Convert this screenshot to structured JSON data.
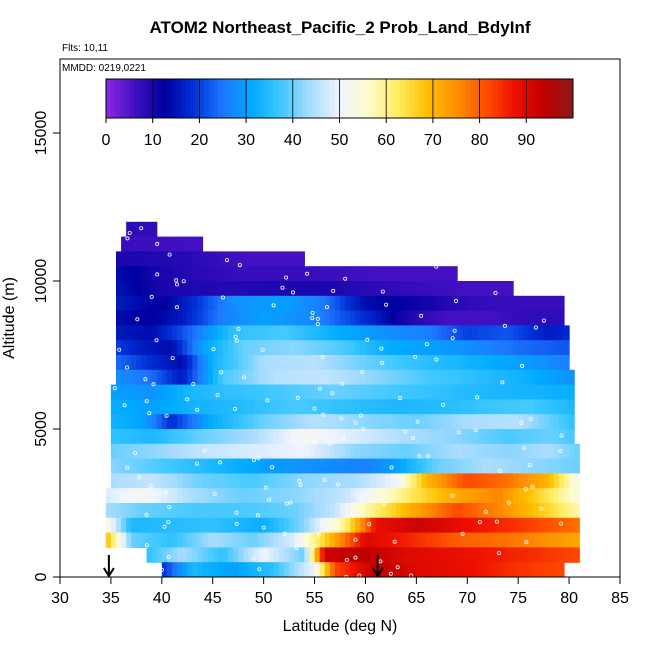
{
  "chart_data": {
    "type": "heatmap",
    "title": "ATOM2 Northeast_Pacific_2 Prob_Land_BdyInf",
    "annotations": {
      "flights": "Flts: 10,11",
      "dates": "MMDD: 0219,0221"
    },
    "xlabel": "Latitude (deg N)",
    "ylabel": "Altitude (m)",
    "xlim": [
      30,
      85
    ],
    "ylim": [
      0,
      17500
    ],
    "x_ticks": [
      "30",
      "35",
      "40",
      "45",
      "50",
      "55",
      "60",
      "65",
      "70",
      "75",
      "80",
      "85"
    ],
    "y_ticks": [
      "0",
      "5000",
      "10000",
      "15000"
    ],
    "colorbar": {
      "range": [
        0,
        100
      ],
      "tick_labels": [
        "0",
        "10",
        "20",
        "30",
        "40",
        "50",
        "60",
        "70",
        "80",
        "90"
      ],
      "colors": [
        "#8a2be2",
        "#4010c0",
        "#0000a0",
        "#0030d8",
        "#1e78ff",
        "#00aaff",
        "#40c8ff",
        "#a8dcff",
        "#f0f4ff",
        "#fffccc",
        "#ffec60",
        "#ffc000",
        "#ff9000",
        "#ff5000",
        "#ee1000",
        "#c00000",
        "#8b1a1a"
      ]
    },
    "markers_latitude": [
      34.8,
      61.2
    ],
    "altitude_bands": [
      {
        "alt": [
          11500,
          12000
        ],
        "lat": [
          36.5,
          39.5
        ],
        "values": [
          [
            36.5,
            8
          ],
          [
            39.5,
            8
          ]
        ]
      },
      {
        "alt": [
          11000,
          11500
        ],
        "lat": [
          36,
          44
        ],
        "values": [
          [
            36,
            7
          ],
          [
            44,
            6
          ]
        ]
      },
      {
        "alt": [
          10500,
          11000
        ],
        "lat": [
          35.5,
          54
        ],
        "values": [
          [
            35.5,
            10
          ],
          [
            42,
            9
          ],
          [
            48,
            6
          ],
          [
            54,
            6
          ]
        ]
      },
      {
        "alt": [
          10000,
          10500
        ],
        "lat": [
          35.5,
          69
        ],
        "values": [
          [
            35.5,
            14
          ],
          [
            40,
            10
          ],
          [
            48,
            7
          ],
          [
            55,
            7
          ],
          [
            62,
            6
          ],
          [
            69,
            6
          ]
        ]
      },
      {
        "alt": [
          9500,
          10000
        ],
        "lat": [
          35.5,
          74.5
        ],
        "values": [
          [
            35.5,
            15
          ],
          [
            40,
            10
          ],
          [
            47,
            9
          ],
          [
            55,
            10
          ],
          [
            62,
            8
          ],
          [
            70,
            6
          ],
          [
            74.5,
            6
          ]
        ]
      },
      {
        "alt": [
          9000,
          9500
        ],
        "lat": [
          35.5,
          79.5
        ],
        "values": [
          [
            35.5,
            16
          ],
          [
            40,
            12
          ],
          [
            43,
            18
          ],
          [
            47,
            28
          ],
          [
            52,
            30
          ],
          [
            56,
            25
          ],
          [
            60,
            14
          ],
          [
            64,
            12
          ],
          [
            70,
            8
          ],
          [
            74,
            7
          ],
          [
            79.5,
            7
          ]
        ]
      },
      {
        "alt": [
          8500,
          9000
        ],
        "lat": [
          35.5,
          79.5
        ],
        "values": [
          [
            35.5,
            14
          ],
          [
            39,
            12
          ],
          [
            42,
            16
          ],
          [
            46,
            26
          ],
          [
            50,
            30
          ],
          [
            55,
            27
          ],
          [
            60,
            18
          ],
          [
            64,
            10
          ],
          [
            68,
            6
          ],
          [
            72,
            6
          ],
          [
            76,
            8
          ],
          [
            79.5,
            8
          ]
        ]
      },
      {
        "alt": [
          8000,
          8500
        ],
        "lat": [
          35.5,
          80
        ],
        "values": [
          [
            35.5,
            16
          ],
          [
            39,
            14
          ],
          [
            43,
            24
          ],
          [
            47,
            36
          ],
          [
            52,
            38
          ],
          [
            57,
            32
          ],
          [
            62,
            28
          ],
          [
            66,
            26
          ],
          [
            70,
            20
          ],
          [
            74,
            22
          ],
          [
            78,
            16
          ],
          [
            80,
            18
          ]
        ]
      },
      {
        "alt": [
          7500,
          8000
        ],
        "lat": [
          35.5,
          80
        ],
        "values": [
          [
            35.5,
            20
          ],
          [
            38,
            16
          ],
          [
            41,
            14
          ],
          [
            44,
            30
          ],
          [
            48,
            40
          ],
          [
            53,
            42
          ],
          [
            58,
            38
          ],
          [
            62,
            32
          ],
          [
            66,
            30
          ],
          [
            70,
            28
          ],
          [
            75,
            24
          ],
          [
            80,
            22
          ]
        ]
      },
      {
        "alt": [
          7000,
          7500
        ],
        "lat": [
          35.5,
          80
        ],
        "values": [
          [
            35.5,
            24
          ],
          [
            39,
            18
          ],
          [
            42,
            14
          ],
          [
            45,
            33
          ],
          [
            50,
            44
          ],
          [
            55,
            45
          ],
          [
            60,
            40
          ],
          [
            65,
            36
          ],
          [
            70,
            33
          ],
          [
            75,
            30
          ],
          [
            80,
            26
          ]
        ]
      },
      {
        "alt": [
          6500,
          7000
        ],
        "lat": [
          35.5,
          80.5
        ],
        "values": [
          [
            35.5,
            28
          ],
          [
            39,
            24
          ],
          [
            42,
            16
          ],
          [
            46,
            38
          ],
          [
            51,
            45
          ],
          [
            56,
            46
          ],
          [
            61,
            42
          ],
          [
            66,
            38
          ],
          [
            70,
            36
          ],
          [
            75,
            33
          ],
          [
            80.5,
            28
          ]
        ]
      },
      {
        "alt": [
          6000,
          6500
        ],
        "lat": [
          35,
          80.5
        ],
        "values": [
          [
            35,
            30
          ],
          [
            39,
            28
          ],
          [
            43,
            34
          ],
          [
            47,
            36
          ],
          [
            52,
            38
          ],
          [
            57,
            40
          ],
          [
            62,
            38
          ],
          [
            67,
            36
          ],
          [
            72,
            34
          ],
          [
            77,
            33
          ],
          [
            80.5,
            32
          ]
        ]
      },
      {
        "alt": [
          5500,
          6000
        ],
        "lat": [
          35,
          80.5
        ],
        "values": [
          [
            35,
            32
          ],
          [
            39,
            30
          ],
          [
            43,
            33
          ],
          [
            48,
            35
          ],
          [
            53,
            38
          ],
          [
            58,
            36
          ],
          [
            63,
            34
          ],
          [
            68,
            35
          ],
          [
            72,
            37
          ],
          [
            76,
            38
          ],
          [
            80.5,
            34
          ]
        ]
      },
      {
        "alt": [
          5000,
          5500
        ],
        "lat": [
          35,
          80.5
        ],
        "values": [
          [
            35,
            33
          ],
          [
            38,
            31
          ],
          [
            41,
            18
          ],
          [
            45,
            32
          ],
          [
            50,
            40
          ],
          [
            55,
            45
          ],
          [
            60,
            42
          ],
          [
            65,
            40
          ],
          [
            70,
            44
          ],
          [
            75,
            45
          ],
          [
            80.5,
            36
          ]
        ]
      },
      {
        "alt": [
          4500,
          5000
        ],
        "lat": [
          35,
          80.5
        ],
        "values": [
          [
            35,
            36
          ],
          [
            39,
            34
          ],
          [
            44,
            40
          ],
          [
            49,
            44
          ],
          [
            54,
            52
          ],
          [
            59,
            48
          ],
          [
            64,
            44
          ],
          [
            69,
            42
          ],
          [
            74,
            38
          ],
          [
            78,
            40
          ],
          [
            80.5,
            38
          ]
        ]
      },
      {
        "alt": [
          4000,
          4500
        ],
        "lat": [
          35,
          81
        ],
        "values": [
          [
            35,
            40
          ],
          [
            39,
            42
          ],
          [
            44,
            46
          ],
          [
            49,
            48
          ],
          [
            54,
            50
          ],
          [
            59,
            42
          ],
          [
            64,
            40
          ],
          [
            69,
            44
          ],
          [
            74,
            42
          ],
          [
            78,
            44
          ],
          [
            81,
            40
          ]
        ]
      },
      {
        "alt": [
          3500,
          4000
        ],
        "lat": [
          35,
          81
        ],
        "values": [
          [
            35,
            42
          ],
          [
            40,
            38
          ],
          [
            45,
            34
          ],
          [
            50,
            30
          ],
          [
            55,
            28
          ],
          [
            60,
            26
          ],
          [
            63,
            30
          ],
          [
            67,
            40
          ],
          [
            72,
            44
          ],
          [
            77,
            42
          ],
          [
            81,
            40
          ]
        ]
      },
      {
        "alt": [
          3000,
          3500
        ],
        "lat": [
          35,
          81
        ],
        "values": [
          [
            35,
            44
          ],
          [
            39,
            46
          ],
          [
            44,
            40
          ],
          [
            49,
            38
          ],
          [
            54,
            42
          ],
          [
            59,
            44
          ],
          [
            63,
            50
          ],
          [
            66,
            70
          ],
          [
            70,
            82
          ],
          [
            74,
            78
          ],
          [
            78,
            70
          ],
          [
            81,
            52
          ]
        ]
      },
      {
        "alt": [
          2500,
          3000
        ],
        "lat": [
          34.5,
          81
        ],
        "values": [
          [
            34.5,
            48
          ],
          [
            38,
            52
          ],
          [
            43,
            44
          ],
          [
            48,
            40
          ],
          [
            53,
            42
          ],
          [
            58,
            46
          ],
          [
            62,
            56
          ],
          [
            65,
            64
          ],
          [
            69,
            72
          ],
          [
            73,
            76
          ],
          [
            77,
            66
          ],
          [
            81,
            54
          ]
        ]
      },
      {
        "alt": [
          2000,
          2500
        ],
        "lat": [
          34.5,
          81
        ],
        "values": [
          [
            34.5,
            44
          ],
          [
            38,
            40
          ],
          [
            43,
            38
          ],
          [
            48,
            38
          ],
          [
            53,
            40
          ],
          [
            57,
            46
          ],
          [
            60,
            58
          ],
          [
            64,
            70
          ],
          [
            69,
            82
          ],
          [
            73,
            76
          ],
          [
            77,
            68
          ],
          [
            81,
            58
          ]
        ]
      },
      {
        "alt": [
          1500,
          2000
        ],
        "lat": [
          34.5,
          81
        ],
        "values": [
          [
            34.5,
            55
          ],
          [
            37,
            34
          ],
          [
            41,
            35
          ],
          [
            45,
            36
          ],
          [
            50,
            32
          ],
          [
            54,
            42
          ],
          [
            58,
            60
          ],
          [
            61,
            88
          ],
          [
            65,
            92
          ],
          [
            70,
            88
          ],
          [
            75,
            84
          ],
          [
            81,
            78
          ]
        ]
      },
      {
        "alt": [
          1000,
          1500
        ],
        "lat": [
          34.5,
          81
        ],
        "values": [
          [
            34.5,
            70
          ],
          [
            37,
            40
          ],
          [
            41,
            36
          ],
          [
            45,
            44
          ],
          [
            49,
            40
          ],
          [
            53,
            48
          ],
          [
            57,
            72
          ],
          [
            60,
            90
          ],
          [
            64,
            86
          ],
          [
            69,
            80
          ],
          [
            74,
            78
          ],
          [
            81,
            72
          ]
        ]
      },
      {
        "alt": [
          500,
          1000
        ],
        "lat": [
          38.5,
          81
        ],
        "values": [
          [
            38.5,
            36
          ],
          [
            42,
            44
          ],
          [
            46,
            36
          ],
          [
            50,
            50
          ],
          [
            54,
            40
          ],
          [
            56,
            92
          ],
          [
            60,
            94
          ],
          [
            64,
            90
          ],
          [
            69,
            88
          ],
          [
            74,
            86
          ],
          [
            81,
            82
          ]
        ]
      },
      {
        "alt": [
          0,
          500
        ],
        "lat": [
          40,
          79.5
        ],
        "values": [
          [
            40,
            18
          ],
          [
            43,
            34
          ],
          [
            47,
            30
          ],
          [
            51,
            36
          ],
          [
            55,
            50
          ],
          [
            57,
            82
          ],
          [
            61,
            94
          ],
          [
            65,
            90
          ],
          [
            70,
            88
          ],
          [
            75,
            84
          ],
          [
            79.5,
            82
          ]
        ]
      }
    ]
  }
}
